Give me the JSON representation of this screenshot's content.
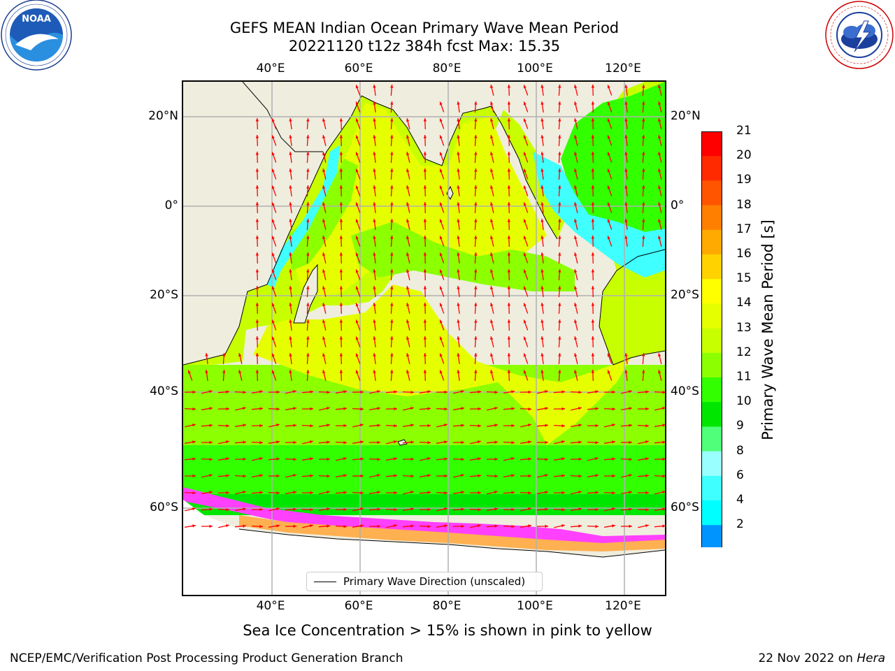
{
  "title": {
    "line1": "GEFS MEAN Indian Ocean Primary Wave Mean Period",
    "line2": "20221120 t12z 384h fcst   Max: 15.35"
  },
  "logos": {
    "left_text": "NOAA",
    "left_ring": "NATIONAL OCEANIC AND ATMOSPHERIC ADMINISTRATION · U.S. DEPARTMENT OF COMMERCE",
    "right_ring": "NATIONAL WEATHER SERVICE"
  },
  "axes": {
    "lon_ticks": [
      "40°E",
      "60°E",
      "80°E",
      "100°E",
      "120°E"
    ],
    "lat_ticks": [
      "20°N",
      "0°",
      "20°S",
      "40°S",
      "60°S"
    ]
  },
  "legend": {
    "label": "Primary Wave Direction (unscaled)"
  },
  "colorbar": {
    "label": "Primary Wave Mean Period [s]",
    "ticks": [
      "21",
      "20",
      "19",
      "18",
      "17",
      "16",
      "15",
      "14",
      "13",
      "12",
      "11",
      "10",
      "9",
      "8",
      "6",
      "4",
      "2"
    ],
    "colors": [
      "#ff0000",
      "#ff2a00",
      "#ff5500",
      "#ff7f00",
      "#ffaa00",
      "#ffd200",
      "#ffff00",
      "#e6ff00",
      "#c8ff00",
      "#8cff00",
      "#32ff00",
      "#00e600",
      "#50ff7a",
      "#9affff",
      "#40ffff",
      "#00ffff",
      "#0094ff"
    ],
    "extend_color": "#0000ff"
  },
  "note": "Sea Ice Concentration > 15% is shown in pink to yellow",
  "footer": {
    "left": "NCEP/EMC/Verification Post Processing Product Generation Branch",
    "right_date": "22 Nov 2022 on ",
    "right_host": "Hera"
  },
  "colors": {
    "land": "#efedde",
    "arrow": "#ff0000",
    "grid": "#b0b0b0",
    "ice_pink": "#ff40ff",
    "ice_orange": "#ffb050"
  }
}
